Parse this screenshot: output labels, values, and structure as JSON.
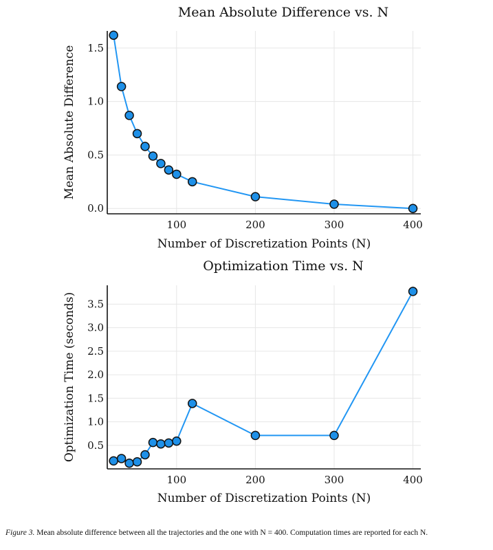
{
  "chart_data": [
    {
      "type": "line",
      "title": "Mean Absolute Difference vs. N",
      "xlabel": "Number of Discretization Points (N)",
      "ylabel": "Mean Absolute Difference",
      "x": [
        20,
        30,
        40,
        50,
        60,
        70,
        80,
        90,
        100,
        120,
        200,
        300,
        400
      ],
      "values": [
        1.62,
        1.14,
        0.87,
        0.7,
        0.58,
        0.49,
        0.42,
        0.36,
        0.32,
        0.25,
        0.11,
        0.04,
        0.0
      ],
      "xticks": [
        100,
        200,
        300,
        400
      ],
      "xtick_labels": [
        "100",
        "200",
        "300",
        "400"
      ],
      "yticks": [
        0.0,
        0.5,
        1.0,
        1.5
      ],
      "ytick_labels": [
        "0.0",
        "0.5",
        "1.0",
        "1.5"
      ],
      "xlim": [
        12,
        410
      ],
      "ylim": [
        -0.05,
        1.66
      ],
      "grid": true,
      "markers": true,
      "line_color": "#2196f3",
      "marker_color": "#1e90e8"
    },
    {
      "type": "line",
      "title": "Optimization Time vs. N",
      "xlabel": "Number of Discretization Points (N)",
      "ylabel": "Optimization Time (seconds)",
      "x": [
        20,
        30,
        40,
        50,
        60,
        70,
        80,
        90,
        100,
        120,
        200,
        300,
        400
      ],
      "values": [
        0.17,
        0.22,
        0.12,
        0.15,
        0.3,
        0.56,
        0.53,
        0.55,
        0.59,
        1.39,
        0.71,
        0.71,
        3.77
      ],
      "xticks": [
        100,
        200,
        300,
        400
      ],
      "xtick_labels": [
        "100",
        "200",
        "300",
        "400"
      ],
      "yticks": [
        0.5,
        1.0,
        1.5,
        2.0,
        2.5,
        3.0,
        3.5
      ],
      "ytick_labels": [
        "0.5",
        "1.0",
        "1.5",
        "2.0",
        "2.5",
        "3.0",
        "3.5"
      ],
      "xlim": [
        12,
        410
      ],
      "ylim": [
        0.0,
        3.9
      ],
      "grid": true,
      "markers": true,
      "line_color": "#2196f3",
      "marker_color": "#1e90e8"
    }
  ],
  "caption": {
    "label": "Figure 3.",
    "text": " Mean absolute difference between all the trajectories and the one with N = 400. Computation times are reported for each N."
  }
}
